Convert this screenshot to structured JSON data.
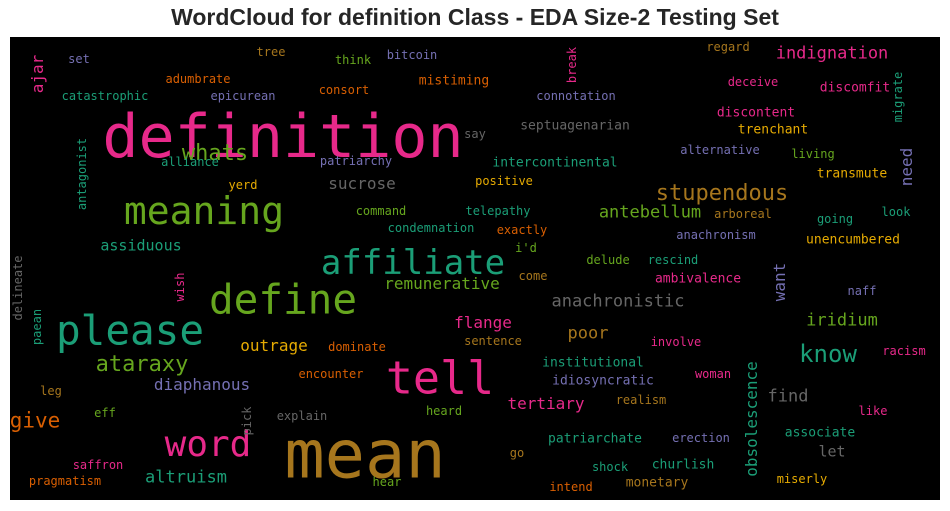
{
  "title": "WordCloud for definition Class - EDA Size-2 Testing Set",
  "chart_data": {
    "type": "wordcloud",
    "title": "WordCloud for definition Class - EDA Size-2 Testing Set",
    "background": "#000000",
    "words": [
      {
        "text": "definition",
        "weight": 100,
        "color": "#e7298a"
      },
      {
        "text": "mean",
        "weight": 98,
        "color": "#a6761d"
      },
      {
        "text": "tell",
        "weight": 70,
        "color": "#e7298a"
      },
      {
        "text": "please",
        "weight": 68,
        "color": "#1b9e77"
      },
      {
        "text": "define",
        "weight": 66,
        "color": "#66a61e"
      },
      {
        "text": "word",
        "weight": 62,
        "color": "#e7298a"
      },
      {
        "text": "meaning",
        "weight": 62,
        "color": "#66a61e"
      },
      {
        "text": "affiliate",
        "weight": 55,
        "color": "#1b9e77"
      },
      {
        "text": "stupendous",
        "weight": 40,
        "color": "#a6761d"
      },
      {
        "text": "know",
        "weight": 40,
        "color": "#1b9e77"
      },
      {
        "text": "whats",
        "weight": 36,
        "color": "#66a61e"
      },
      {
        "text": "ataraxy",
        "weight": 36,
        "color": "#66a61e"
      },
      {
        "text": "give",
        "weight": 34,
        "color": "#d95f02"
      },
      {
        "text": "indignation",
        "weight": 30,
        "color": "#e7298a"
      },
      {
        "text": "antebellum",
        "weight": 30,
        "color": "#66a61e"
      },
      {
        "text": "anachronistic",
        "weight": 29,
        "color": "#666666"
      },
      {
        "text": "sucrose",
        "weight": 28,
        "color": "#666666"
      },
      {
        "text": "remunerative",
        "weight": 28,
        "color": "#66a61e"
      },
      {
        "text": "iridium",
        "weight": 28,
        "color": "#66a61e"
      },
      {
        "text": "find",
        "weight": 28,
        "color": "#666666"
      },
      {
        "text": "poor",
        "weight": 28,
        "color": "#a6761d"
      },
      {
        "text": "flange",
        "weight": 26,
        "color": "#e7298a"
      },
      {
        "text": "diaphanous",
        "weight": 26,
        "color": "#7570b3"
      },
      {
        "text": "outrage",
        "weight": 26,
        "color": "#e6ab02"
      },
      {
        "text": "altruism",
        "weight": 26,
        "color": "#1b9e77"
      },
      {
        "text": "tertiary",
        "weight": 26,
        "color": "#e7298a"
      },
      {
        "text": "assiduous",
        "weight": 26,
        "color": "#1b9e77"
      },
      {
        "text": "obsolescence",
        "weight": 26,
        "color": "#1b9e77"
      },
      {
        "text": "need",
        "weight": 26,
        "color": "#7570b3"
      },
      {
        "text": "want",
        "weight": 24,
        "color": "#7570b3"
      },
      {
        "text": "ajar",
        "weight": 24,
        "color": "#e7298a"
      },
      {
        "text": "let",
        "weight": 24,
        "color": "#666666"
      },
      {
        "text": "intercontinental",
        "weight": 22,
        "color": "#1b9e77"
      },
      {
        "text": "septuagenarian",
        "weight": 22,
        "color": "#666666"
      },
      {
        "text": "institutional",
        "weight": 22,
        "color": "#1b9e77"
      },
      {
        "text": "idiosyncratic",
        "weight": 22,
        "color": "#7570b3"
      },
      {
        "text": "unencumbered",
        "weight": 22,
        "color": "#e6ab02"
      },
      {
        "text": "ambivalence",
        "weight": 22,
        "color": "#e7298a"
      },
      {
        "text": "patriarchate",
        "weight": 22,
        "color": "#1b9e77"
      },
      {
        "text": "churlish",
        "weight": 22,
        "color": "#1b9e77"
      },
      {
        "text": "anachronism",
        "weight": 20,
        "color": "#7570b3"
      },
      {
        "text": "condemnation",
        "weight": 20,
        "color": "#1b9e77"
      },
      {
        "text": "transmute",
        "weight": 20,
        "color": "#e6ab02"
      },
      {
        "text": "associate",
        "weight": 20,
        "color": "#1b9e77"
      },
      {
        "text": "monetary",
        "weight": 20,
        "color": "#a6761d"
      },
      {
        "text": "pragmatism",
        "weight": 20,
        "color": "#d95f02"
      },
      {
        "text": "catastrophic",
        "weight": 20,
        "color": "#1b9e77"
      },
      {
        "text": "epicurean",
        "weight": 20,
        "color": "#7570b3"
      },
      {
        "text": "connotation",
        "weight": 20,
        "color": "#7570b3"
      },
      {
        "text": "mistiming",
        "weight": 20,
        "color": "#d95f02"
      },
      {
        "text": "discontent",
        "weight": 20,
        "color": "#e7298a"
      },
      {
        "text": "discomfit",
        "weight": 20,
        "color": "#e7298a"
      },
      {
        "text": "trenchant",
        "weight": 20,
        "color": "#e6ab02"
      },
      {
        "text": "alternative",
        "weight": 20,
        "color": "#7570b3"
      },
      {
        "text": "telepathy",
        "weight": 20,
        "color": "#1b9e77"
      },
      {
        "text": "arboreal",
        "weight": 20,
        "color": "#a6761d"
      },
      {
        "text": "antagonist",
        "weight": 20,
        "color": "#1b9e77"
      },
      {
        "text": "patriarchy",
        "weight": 20,
        "color": "#7570b3"
      },
      {
        "text": "alliance",
        "weight": 20,
        "color": "#1b9e77"
      },
      {
        "text": "adumbrate",
        "weight": 20,
        "color": "#d95f02"
      },
      {
        "text": "regard",
        "weight": 18,
        "color": "#a6761d"
      },
      {
        "text": "deceive",
        "weight": 18,
        "color": "#e7298a"
      },
      {
        "text": "bitcoin",
        "weight": 18,
        "color": "#7570b3"
      },
      {
        "text": "consort",
        "weight": 18,
        "color": "#d95f02"
      },
      {
        "text": "think",
        "weight": 18,
        "color": "#66a61e"
      },
      {
        "text": "tree",
        "weight": 18,
        "color": "#a6761d"
      },
      {
        "text": "set",
        "weight": 18,
        "color": "#7570b3"
      },
      {
        "text": "break",
        "weight": 18,
        "color": "#e7298a"
      },
      {
        "text": "migrate",
        "weight": 18,
        "color": "#1b9e77"
      },
      {
        "text": "say",
        "weight": 18,
        "color": "#666666"
      },
      {
        "text": "living",
        "weight": 18,
        "color": "#66a61e"
      },
      {
        "text": "positive",
        "weight": 18,
        "color": "#e6ab02"
      },
      {
        "text": "command",
        "weight": 18,
        "color": "#66a61e"
      },
      {
        "text": "yerd",
        "weight": 18,
        "color": "#e6ab02"
      },
      {
        "text": "exactly",
        "weight": 18,
        "color": "#d95f02"
      },
      {
        "text": "going",
        "weight": 18,
        "color": "#1b9e77"
      },
      {
        "text": "look",
        "weight": 18,
        "color": "#1b9e77"
      },
      {
        "text": "i'd",
        "weight": 18,
        "color": "#66a61e"
      },
      {
        "text": "delude",
        "weight": 18,
        "color": "#66a61e"
      },
      {
        "text": "rescind",
        "weight": 18,
        "color": "#1b9e77"
      },
      {
        "text": "come",
        "weight": 18,
        "color": "#a6761d"
      },
      {
        "text": "wish",
        "weight": 18,
        "color": "#e7298a"
      },
      {
        "text": "naff",
        "weight": 18,
        "color": "#7570b3"
      },
      {
        "text": "delineate",
        "weight": 18,
        "color": "#666666"
      },
      {
        "text": "paean",
        "weight": 18,
        "color": "#1b9e77"
      },
      {
        "text": "sentence",
        "weight": 18,
        "color": "#a6761d"
      },
      {
        "text": "dominate",
        "weight": 18,
        "color": "#d95f02"
      },
      {
        "text": "involve",
        "weight": 18,
        "color": "#e7298a"
      },
      {
        "text": "racism",
        "weight": 18,
        "color": "#e7298a"
      },
      {
        "text": "encounter",
        "weight": 18,
        "color": "#d95f02"
      },
      {
        "text": "woman",
        "weight": 18,
        "color": "#e7298a"
      },
      {
        "text": "realism",
        "weight": 18,
        "color": "#a6761d"
      },
      {
        "text": "leg",
        "weight": 18,
        "color": "#a6761d"
      },
      {
        "text": "explain",
        "weight": 18,
        "color": "#666666"
      },
      {
        "text": "heard",
        "weight": 18,
        "color": "#66a61e"
      },
      {
        "text": "eff",
        "weight": 18,
        "color": "#66a61e"
      },
      {
        "text": "pick",
        "weight": 18,
        "color": "#666666"
      },
      {
        "text": "like",
        "weight": 18,
        "color": "#e7298a"
      },
      {
        "text": "erection",
        "weight": 18,
        "color": "#7570b3"
      },
      {
        "text": "go",
        "weight": 18,
        "color": "#a6761d"
      },
      {
        "text": "shock",
        "weight": 18,
        "color": "#1b9e77"
      },
      {
        "text": "saffron",
        "weight": 18,
        "color": "#e7298a"
      },
      {
        "text": "hear",
        "weight": 18,
        "color": "#66a61e"
      },
      {
        "text": "intend",
        "weight": 18,
        "color": "#d95f02"
      },
      {
        "text": "miserly",
        "weight": 18,
        "color": "#e6ab02"
      }
    ]
  }
}
